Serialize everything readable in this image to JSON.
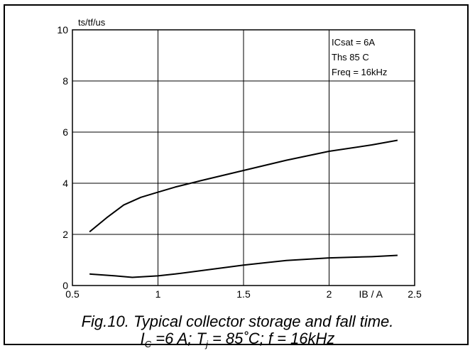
{
  "chart_data": {
    "type": "line",
    "ylabel": "ts/tf/us",
    "xlabel": "IB / A",
    "xlim": [
      0.5,
      2.5
    ],
    "ylim": [
      0,
      10
    ],
    "x_ticks": [
      "0.5",
      "1",
      "1.5",
      "2",
      "2.5"
    ],
    "y_ticks": [
      "0",
      "2",
      "4",
      "6",
      "8",
      "10"
    ],
    "grid": true,
    "annotations": [
      "ICsat = 6A",
      "Ths 85 C",
      "Freq = 16kHz"
    ],
    "series": [
      {
        "x": [
          0.6,
          0.7,
          0.8,
          0.9,
          1.0,
          1.1,
          1.25,
          1.5,
          1.75,
          2.0,
          2.25,
          2.4
        ],
        "values": [
          2.1,
          2.65,
          3.15,
          3.45,
          3.65,
          3.85,
          4.1,
          4.5,
          4.9,
          5.25,
          5.5,
          5.68
        ]
      },
      {
        "x": [
          0.6,
          0.75,
          0.85,
          1.0,
          1.1,
          1.25,
          1.5,
          1.75,
          2.0,
          2.25,
          2.4
        ],
        "values": [
          0.45,
          0.38,
          0.32,
          0.38,
          0.45,
          0.58,
          0.8,
          0.98,
          1.08,
          1.13,
          1.18
        ]
      }
    ]
  },
  "caption": {
    "line1": "Fig.10.   Typical collector storage and fall time.",
    "ic_symbol": "I",
    "ic_sub": "C",
    "ic_value": " =6 A; ",
    "tj_symbol": "T",
    "tj_sub": "j",
    "tj_value": " = 85˚C; f = 16kHz"
  }
}
